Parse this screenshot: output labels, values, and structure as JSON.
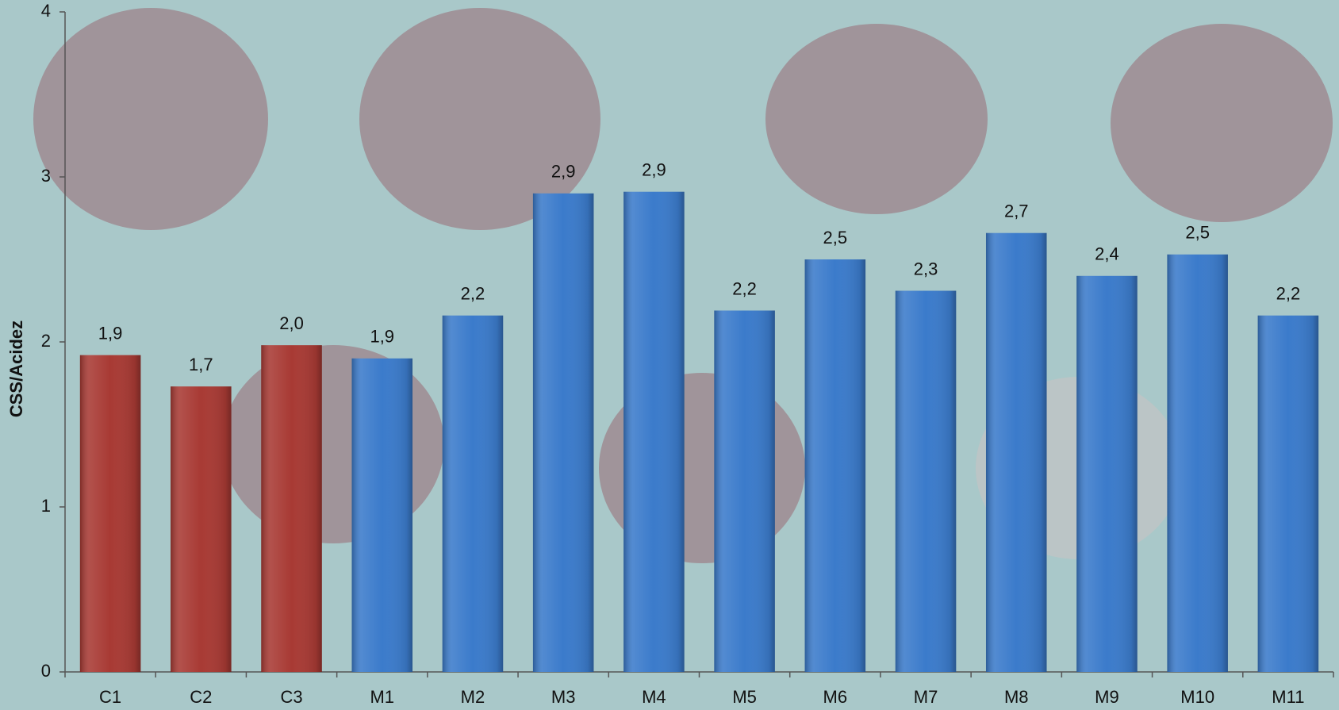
{
  "chart_data": {
    "type": "bar",
    "y_label": "CSS/Acidez",
    "categories": [
      "C1",
      "C2",
      "C3",
      "M1",
      "M2",
      "M3",
      "M4",
      "M5",
      "M6",
      "M7",
      "M8",
      "M9",
      "M10",
      "M11"
    ],
    "values": [
      1.92,
      1.73,
      1.98,
      1.9,
      2.16,
      2.9,
      2.91,
      2.19,
      2.5,
      2.31,
      2.66,
      2.4,
      2.53,
      2.16
    ],
    "value_labels": [
      "1,9",
      "1,7",
      "2,0",
      "1,9",
      "2,2",
      "2,9",
      "2,9",
      "2,2",
      "2,5",
      "2,3",
      "2,7",
      "2,4",
      "2,5",
      "2,2"
    ],
    "colors": [
      "#a83a34",
      "#a83a34",
      "#a83a34",
      "#3b7bcb",
      "#3b7bcb",
      "#3b7bcb",
      "#3b7bcb",
      "#3b7bcb",
      "#3b7bcb",
      "#3b7bcb",
      "#3b7bcb",
      "#3b7bcb",
      "#3b7bcb",
      "#3b7bcb"
    ],
    "ylim": [
      0,
      4
    ],
    "yticks": [
      0,
      1,
      2,
      3,
      4
    ],
    "grid": false
  }
}
